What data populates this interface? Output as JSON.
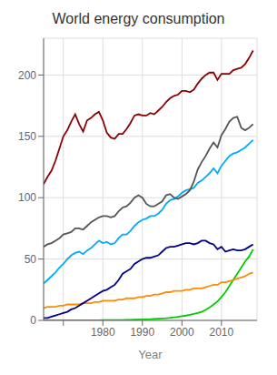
{
  "chart_data": {
    "type": "line",
    "title": "World energy consumption",
    "xlabel": "Year",
    "x": [
      1965,
      1966,
      1967,
      1968,
      1969,
      1970,
      1971,
      1972,
      1973,
      1974,
      1975,
      1976,
      1977,
      1978,
      1979,
      1980,
      1981,
      1982,
      1983,
      1984,
      1985,
      1986,
      1987,
      1988,
      1989,
      1990,
      1991,
      1992,
      1993,
      1994,
      1995,
      1996,
      1997,
      1998,
      1999,
      2000,
      2001,
      2002,
      2003,
      2004,
      2005,
      2006,
      2007,
      2008,
      2009,
      2010,
      2011,
      2012,
      2013,
      2014,
      2015,
      2016,
      2017,
      2018
    ],
    "series": [
      {
        "color": "#00CC00",
        "values": [
          0.1,
          0.1,
          0.1,
          0.1,
          0.1,
          0.1,
          0.1,
          0.1,
          0.1,
          0.1,
          0.1,
          0.1,
          0.1,
          0.1,
          0.1,
          0.2,
          0.2,
          0.2,
          0.2,
          0.3,
          0.3,
          0.4,
          0.5,
          0.6,
          0.7,
          0.8,
          0.9,
          1.0,
          1.2,
          1.4,
          1.6,
          1.8,
          2.1,
          2.5,
          2.9,
          3.4,
          3.9,
          4.5,
          5.2,
          6.0,
          7.0,
          8.5,
          10.5,
          13.0,
          15.5,
          19.0,
          23.0,
          28.0,
          33.0,
          38.0,
          43.0,
          48.0,
          52.0,
          58.0
        ]
      },
      {
        "color": "#FF8C00",
        "values": [
          10,
          11,
          11,
          11,
          12,
          12,
          13,
          13,
          13,
          13,
          14,
          14,
          14,
          15,
          15,
          16,
          16,
          16,
          16,
          17,
          17,
          18,
          18,
          18,
          19,
          19,
          20,
          20,
          21,
          21,
          22,
          23,
          23,
          24,
          24,
          24,
          25,
          25,
          26,
          26,
          26,
          27,
          28,
          29,
          29,
          31,
          31,
          32,
          33,
          34,
          35,
          36,
          38,
          39
        ]
      },
      {
        "color": "#00008B",
        "values": [
          2,
          2,
          3,
          4,
          5,
          6,
          7,
          9,
          10,
          12,
          14,
          16,
          18,
          20,
          22,
          24,
          25,
          27,
          29,
          33,
          38,
          40,
          42,
          46,
          48,
          50,
          51,
          51,
          52,
          53,
          56,
          59,
          60,
          60,
          61,
          62,
          63,
          63,
          62,
          63,
          65,
          65,
          63,
          62,
          58,
          60,
          56,
          57,
          58,
          57,
          57,
          58,
          60,
          62
        ]
      },
      {
        "color": "#00AAFF",
        "values": [
          30,
          33,
          36,
          39,
          43,
          46,
          50,
          53,
          55,
          56,
          54,
          57,
          59,
          62,
          65,
          63,
          64,
          62,
          63,
          67,
          70,
          70,
          73,
          77,
          80,
          82,
          83,
          85,
          85,
          87,
          90,
          95,
          98,
          99,
          101,
          104,
          106,
          107,
          108,
          112,
          114,
          117,
          120,
          124,
          120,
          126,
          130,
          134,
          136,
          137,
          139,
          141,
          144,
          147
        ]
      },
      {
        "color": "#555555",
        "values": [
          60,
          62,
          63,
          65,
          67,
          70,
          71,
          72,
          75,
          75,
          74,
          77,
          80,
          82,
          84,
          85,
          85,
          84,
          85,
          89,
          92,
          93,
          96,
          100,
          102,
          100,
          95,
          93,
          93,
          95,
          97,
          102,
          103,
          100,
          99,
          101,
          103,
          106,
          113,
          123,
          129,
          134,
          140,
          145,
          141,
          151,
          156,
          162,
          165,
          166,
          157,
          155,
          157,
          160
        ]
      },
      {
        "color": "#8B0000",
        "values": [
          111,
          117,
          122,
          130,
          140,
          150,
          155,
          162,
          168,
          160,
          154,
          163,
          165,
          168,
          170,
          163,
          153,
          149,
          148,
          152,
          152,
          156,
          161,
          167,
          168,
          167,
          167,
          169,
          168,
          171,
          174,
          178,
          181,
          183,
          184,
          187,
          187,
          186,
          188,
          193,
          197,
          200,
          202,
          202,
          196,
          201,
          201,
          201,
          204,
          205,
          206,
          209,
          214,
          220
        ]
      }
    ],
    "xlim": [
      1965,
      2019
    ],
    "xticks": [
      {
        "value": 1970,
        "label": ""
      },
      1980,
      1990,
      2000,
      2010
    ],
    "ylim": [
      0,
      230
    ],
    "yticks": [
      0,
      50,
      100,
      150,
      200
    ],
    "grid": true
  }
}
